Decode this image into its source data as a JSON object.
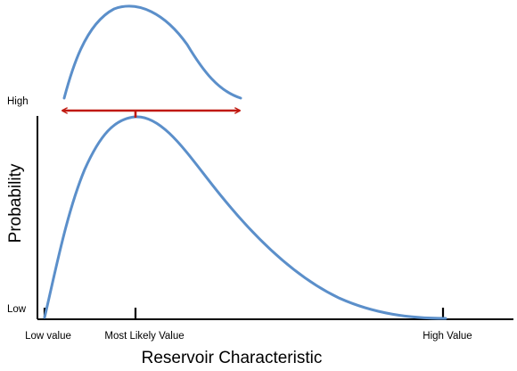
{
  "diagram": {
    "y_axis": {
      "title": "Probability",
      "high_label": "High",
      "low_label": "Low"
    },
    "x_axis": {
      "title": "Reservoir Characteristic",
      "low_label": "Low value",
      "most_likely_label": "Most Likely Value",
      "high_label": "High Value"
    },
    "colors": {
      "curve": "#5b8fca",
      "range_arrow": "#c0190f",
      "axes": "#000000"
    }
  }
}
